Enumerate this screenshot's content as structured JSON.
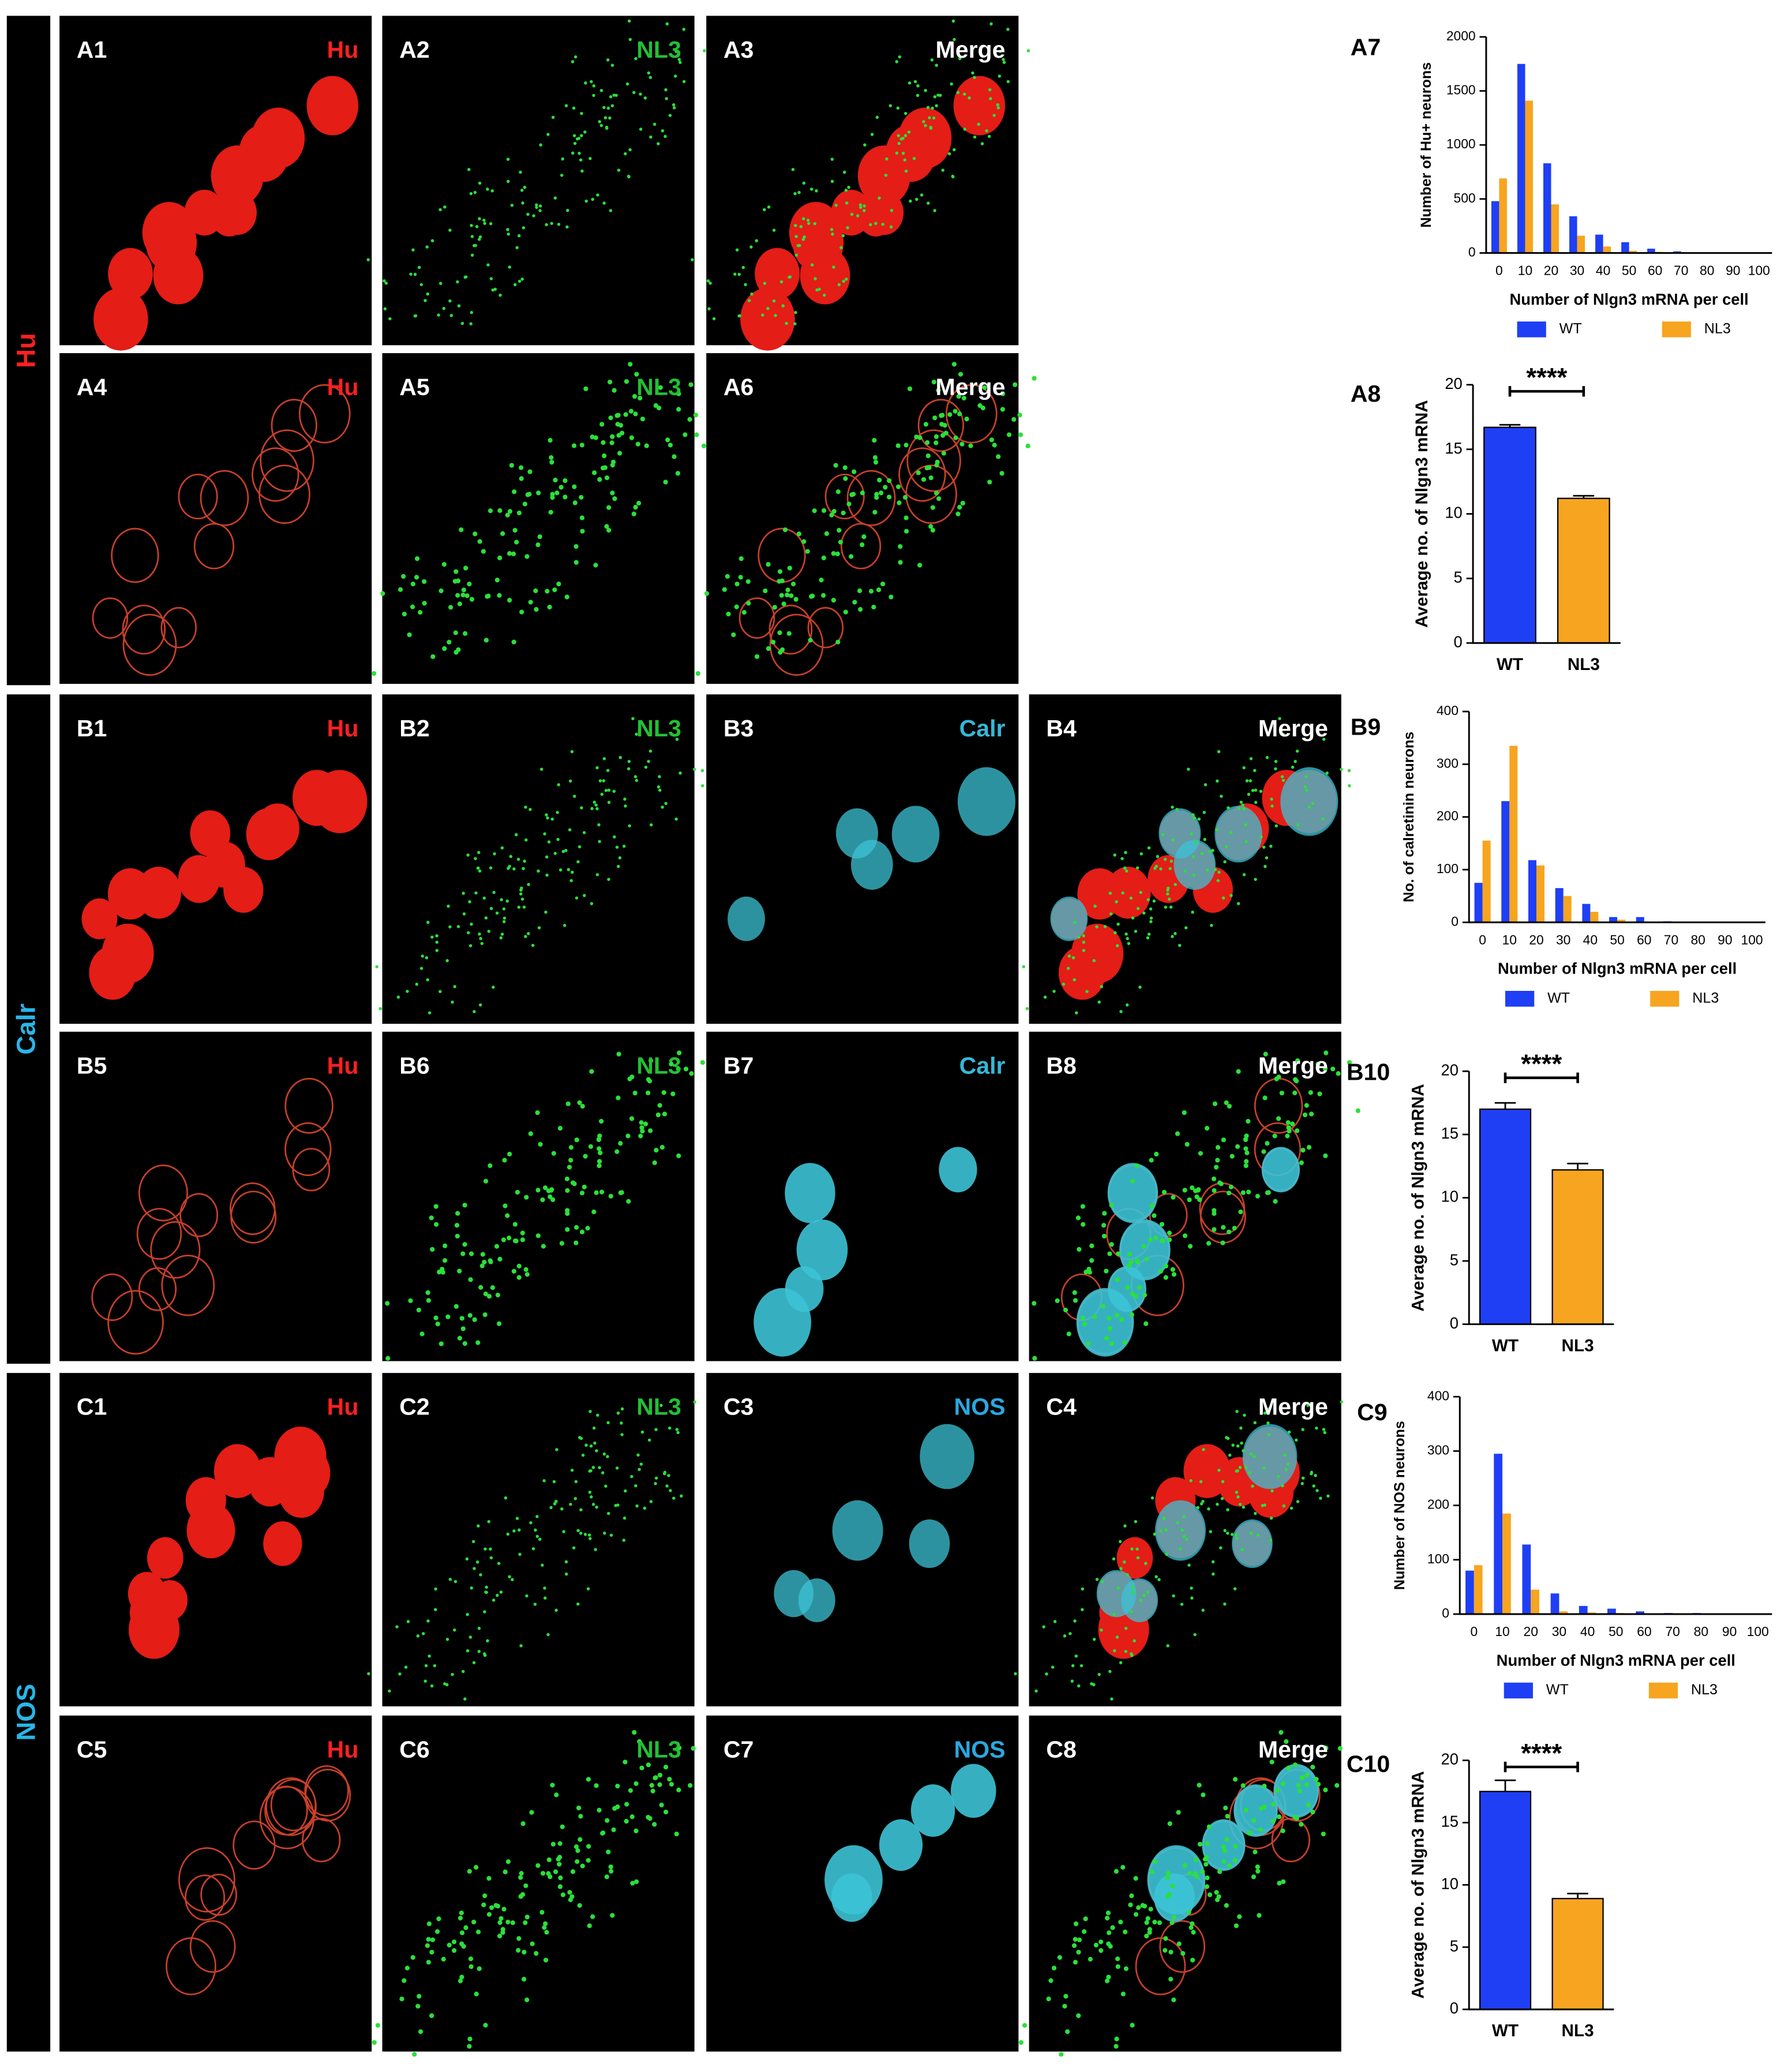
{
  "row_labels": [
    {
      "text": "Hu",
      "color": "#ff2020"
    },
    {
      "text": "Calr",
      "color": "#29b6e8"
    },
    {
      "text": "NOS",
      "color": "#29b6e8"
    }
  ],
  "panels": [
    {
      "label": "A1",
      "stain": "Hu",
      "stain_color": "#ff2020"
    },
    {
      "label": "A2",
      "stain": "NL3",
      "stain_color": "#22c033"
    },
    {
      "label": "A3",
      "stain": "Merge",
      "stain_color": "#ffffff"
    },
    {
      "label": "A4",
      "stain": "Hu",
      "stain_color": "#ff2020"
    },
    {
      "label": "A5",
      "stain": "NL3",
      "stain_color": "#22c033"
    },
    {
      "label": "A6",
      "stain": "Merge",
      "stain_color": "#ffffff"
    },
    {
      "label": "B1",
      "stain": "Hu",
      "stain_color": "#ff2020"
    },
    {
      "label": "B2",
      "stain": "NL3",
      "stain_color": "#22c033"
    },
    {
      "label": "B3",
      "stain": "Calr",
      "stain_color": "#35b8d8"
    },
    {
      "label": "B4",
      "stain": "Merge",
      "stain_color": "#ffffff"
    },
    {
      "label": "B5",
      "stain": "Hu",
      "stain_color": "#ff2020"
    },
    {
      "label": "B6",
      "stain": "NL3",
      "stain_color": "#22c033"
    },
    {
      "label": "B7",
      "stain": "Calr",
      "stain_color": "#35b8d8"
    },
    {
      "label": "B8",
      "stain": "Merge",
      "stain_color": "#ffffff"
    },
    {
      "label": "C1",
      "stain": "Hu",
      "stain_color": "#ff2020"
    },
    {
      "label": "C2",
      "stain": "NL3",
      "stain_color": "#22c033"
    },
    {
      "label": "C3",
      "stain": "NOS",
      "stain_color": "#2aa8e0"
    },
    {
      "label": "C4",
      "stain": "Merge",
      "stain_color": "#ffffff"
    },
    {
      "label": "C5",
      "stain": "Hu",
      "stain_color": "#ff2020"
    },
    {
      "label": "C6",
      "stain": "NL3",
      "stain_color": "#22c033"
    },
    {
      "label": "C7",
      "stain": "NOS",
      "stain_color": "#2aa8e0"
    },
    {
      "label": "C8",
      "stain": "Merge",
      "stain_color": "#ffffff"
    }
  ],
  "chart_data": [
    {
      "type": "bar",
      "label": "A7",
      "y_label": "Number of Hu+ neurons",
      "x_label": "Number of Nlgn3 mRNA per cell",
      "categories": [
        "0",
        "10",
        "20",
        "30",
        "40",
        "50",
        "60",
        "70",
        "80",
        "90",
        "100"
      ],
      "series": [
        {
          "name": "WT",
          "color": "#1f3ff5",
          "values": [
            480,
            1750,
            830,
            340,
            170,
            100,
            40,
            15,
            5,
            3,
            2
          ]
        },
        {
          "name": "NL3",
          "color": "#f7a520",
          "values": [
            690,
            1410,
            450,
            160,
            60,
            20,
            10,
            5,
            3,
            2,
            1
          ]
        }
      ],
      "ylim": [
        0,
        2000
      ],
      "yticks": [
        0,
        500,
        1000,
        1500,
        2000
      ],
      "legend": "bottom"
    },
    {
      "type": "bar",
      "label": "A8",
      "y_label": "Average no. of Nlgn3 mRNA",
      "categories": [
        "WT",
        "NL3"
      ],
      "values": [
        16.7,
        11.2
      ],
      "errors": [
        0.2,
        0.2
      ],
      "colors": [
        "#1f3ff5",
        "#f7a520"
      ],
      "annotation": "****",
      "ylim": [
        0,
        20
      ],
      "yticks": [
        0,
        5,
        10,
        15,
        20
      ]
    },
    {
      "type": "bar",
      "label": "B9",
      "y_label": "No. of calretinin neurons",
      "x_label": "Number of Nlgn3 mRNA per cell",
      "categories": [
        "0",
        "10",
        "20",
        "30",
        "40",
        "50",
        "60",
        "70",
        "80",
        "90",
        "100"
      ],
      "series": [
        {
          "name": "WT",
          "color": "#1f3ff5",
          "values": [
            75,
            230,
            118,
            65,
            35,
            10,
            10,
            2,
            0,
            0,
            0
          ]
        },
        {
          "name": "NL3",
          "color": "#f7a520",
          "values": [
            155,
            335,
            108,
            50,
            20,
            5,
            0,
            0,
            0,
            0,
            0
          ]
        }
      ],
      "ylim": [
        0,
        400
      ],
      "yticks": [
        0,
        100,
        200,
        300,
        400
      ],
      "legend": "bottom"
    },
    {
      "type": "bar",
      "label": "B10",
      "y_label": "Average no. of Nlgn3 mRNA",
      "categories": [
        "WT",
        "NL3"
      ],
      "values": [
        17.0,
        12.2
      ],
      "errors": [
        0.5,
        0.5
      ],
      "colors": [
        "#1f3ff5",
        "#f7a520"
      ],
      "annotation": "****",
      "ylim": [
        0,
        20
      ],
      "yticks": [
        0,
        5,
        10,
        15,
        20
      ]
    },
    {
      "type": "bar",
      "label": "C9",
      "y_label": "Number of NOS neurons",
      "x_label": "Number of Nlgn3 mRNA per cell",
      "categories": [
        "0",
        "10",
        "20",
        "30",
        "40",
        "50",
        "60",
        "70",
        "80",
        "90",
        "100"
      ],
      "series": [
        {
          "name": "WT",
          "color": "#1f3ff5",
          "values": [
            80,
            295,
            128,
            38,
            15,
            10,
            5,
            2,
            2,
            1,
            1
          ]
        },
        {
          "name": "NL3",
          "color": "#f7a520",
          "values": [
            90,
            185,
            45,
            5,
            3,
            2,
            1,
            1,
            0,
            0,
            0
          ]
        }
      ],
      "ylim": [
        0,
        400
      ],
      "yticks": [
        0,
        100,
        200,
        300,
        400
      ],
      "legend": "bottom"
    },
    {
      "type": "bar",
      "label": "C10",
      "y_label": "Average no. of Nlgn3 mRNA",
      "categories": [
        "WT",
        "NL3"
      ],
      "values": [
        17.5,
        8.9
      ],
      "errors": [
        0.9,
        0.4
      ],
      "colors": [
        "#1f3ff5",
        "#f7a520"
      ],
      "annotation": "****",
      "ylim": [
        0,
        20
      ],
      "yticks": [
        0,
        5,
        10,
        15,
        20
      ]
    }
  ]
}
